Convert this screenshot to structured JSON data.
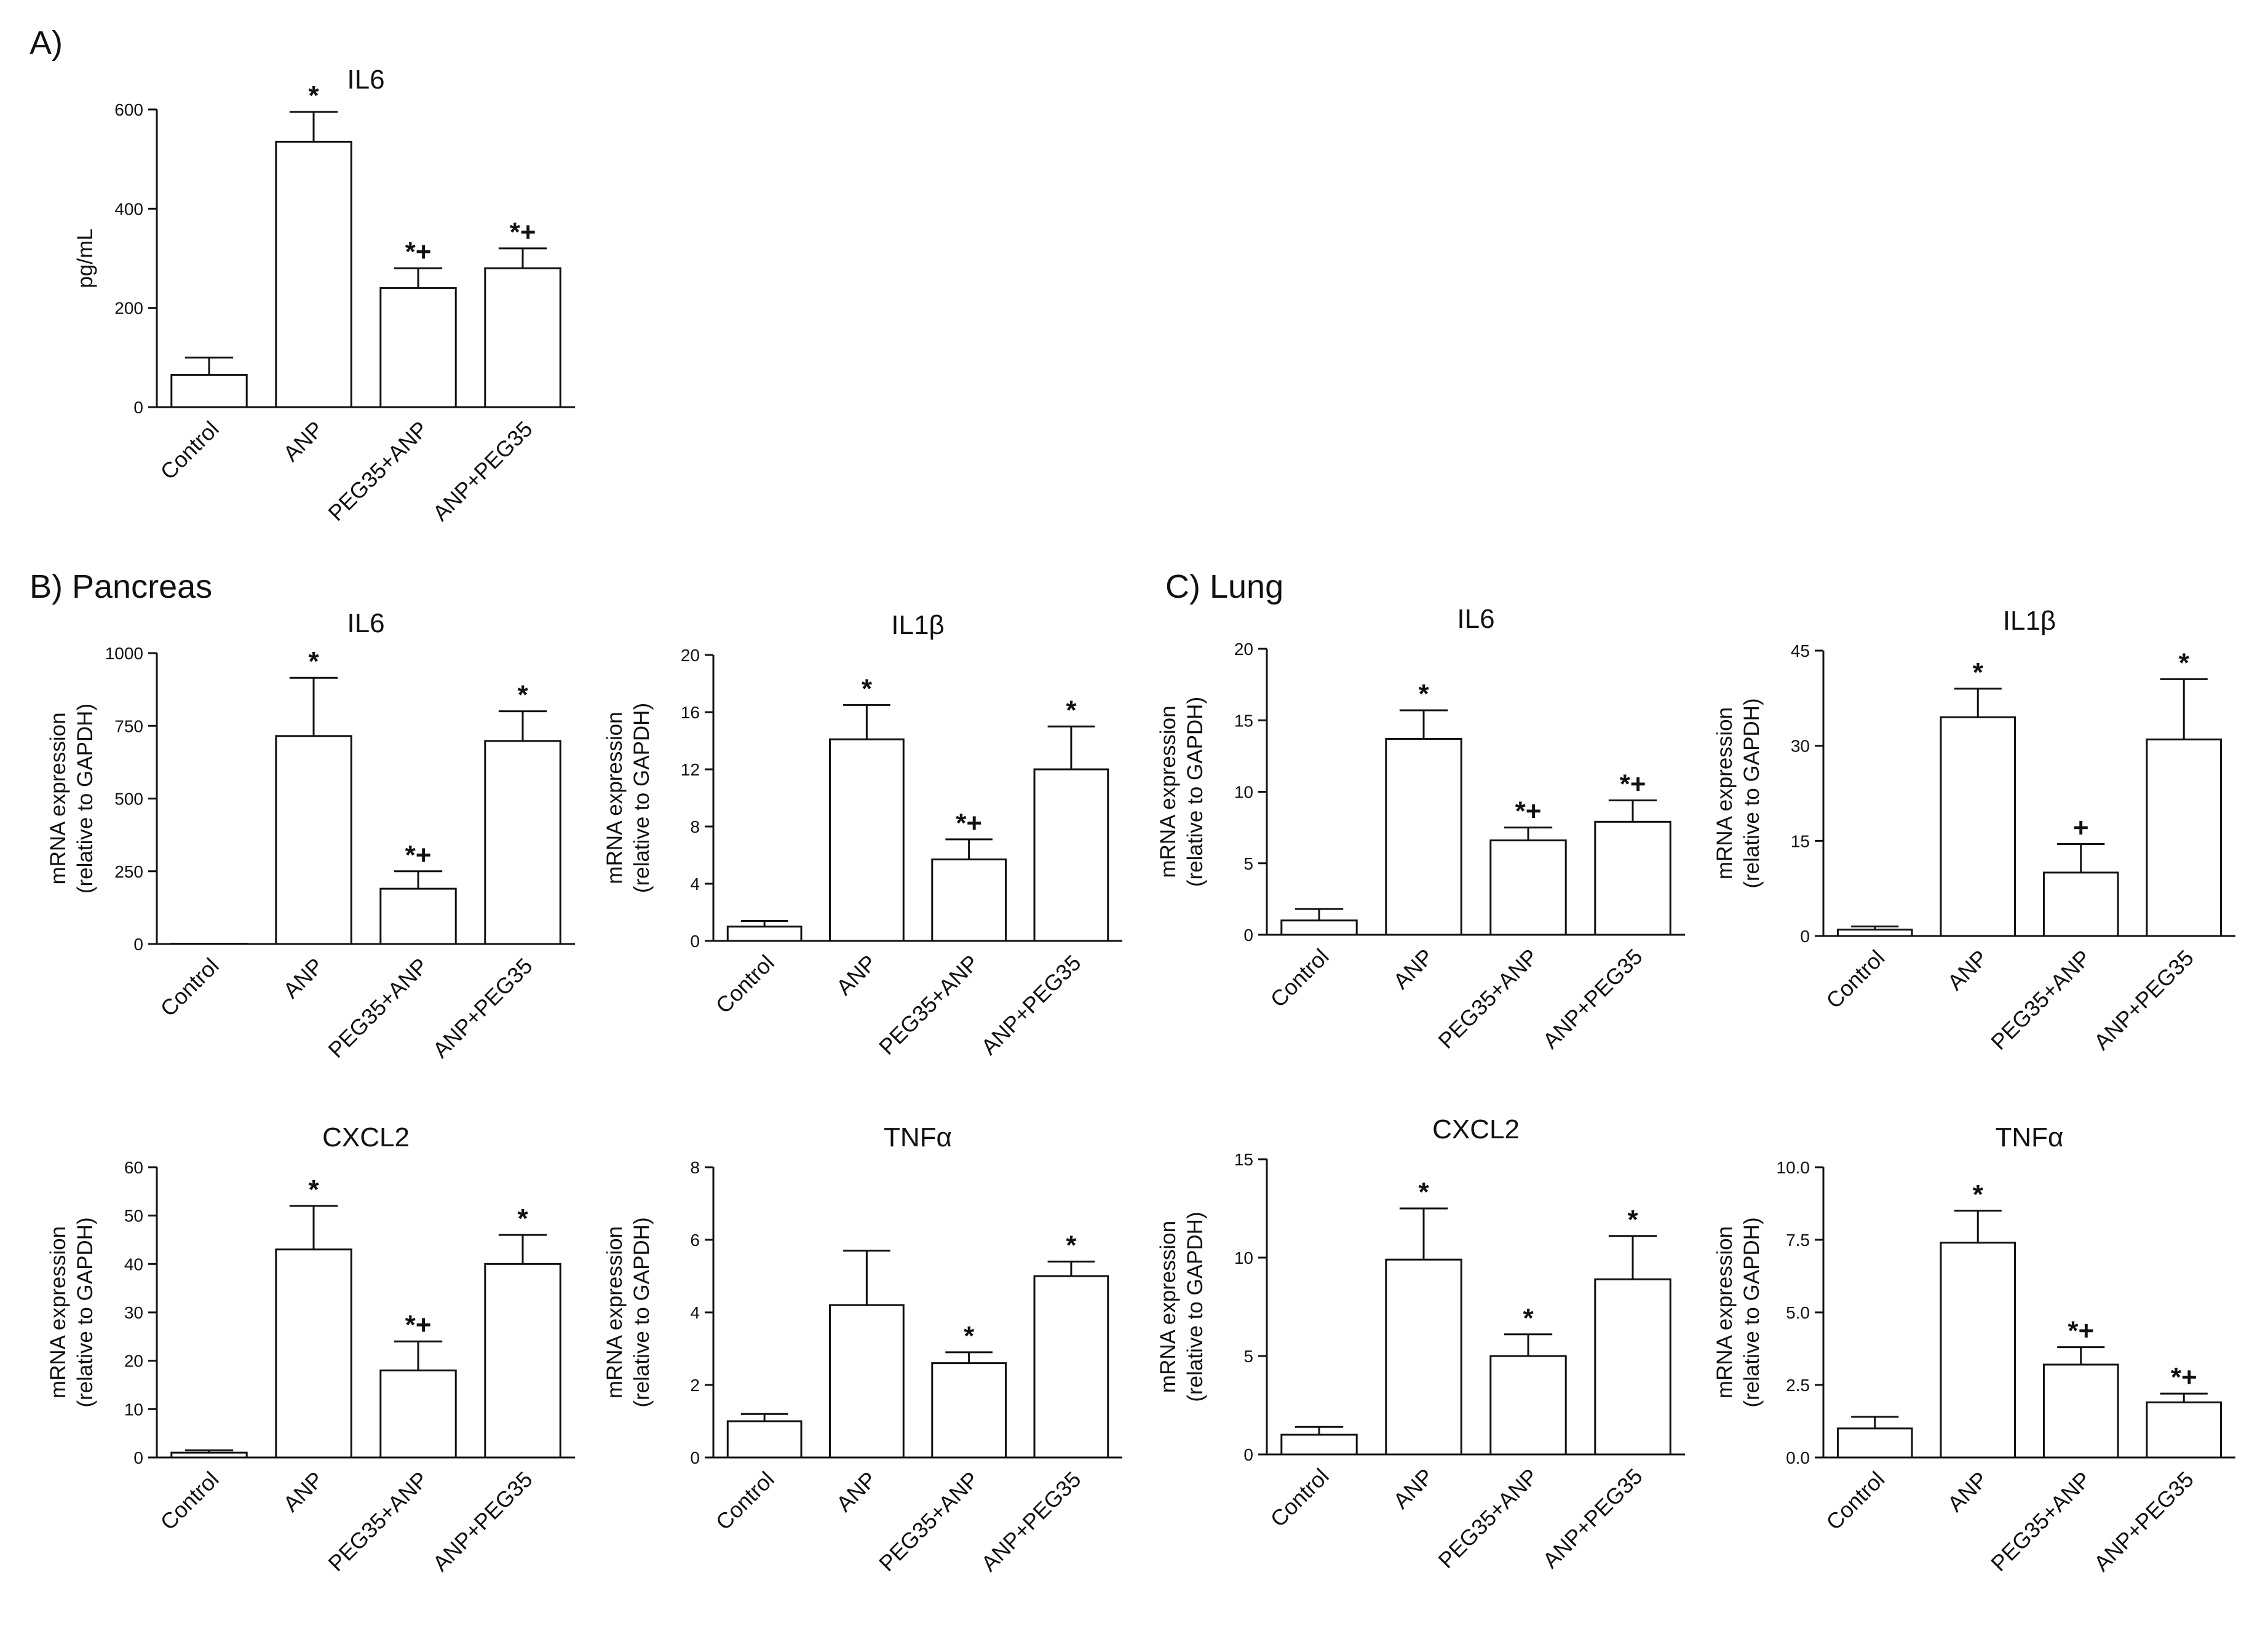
{
  "figure": {
    "panels": [
      {
        "id": "A",
        "label": "A)"
      },
      {
        "id": "B",
        "label": "B) Pancreas"
      },
      {
        "id": "C",
        "label": "C) Lung"
      }
    ]
  },
  "chart_data": [
    {
      "id": "A-IL6",
      "type": "bar",
      "title": "IL6",
      "ylabel": [
        "pg/mL"
      ],
      "xlabel": "",
      "categories": [
        "Control",
        "ANP",
        "PEG35+ANP",
        "ANP+PEG35"
      ],
      "values": [
        65,
        535,
        240,
        280
      ],
      "errors": [
        35,
        60,
        40,
        40
      ],
      "significance": [
        "",
        "*",
        "*+",
        "*+"
      ],
      "ylim": [
        0,
        600
      ],
      "yticks": [
        "0",
        "200",
        "400",
        "600"
      ],
      "grid": false,
      "bar_fill": "#ffffff"
    },
    {
      "id": "B-IL6",
      "type": "bar",
      "title": "IL6",
      "ylabel": [
        "mRNA expression",
        "(relative to GAPDH)"
      ],
      "xlabel": "",
      "categories": [
        "Control",
        "ANP",
        "PEG35+ANP",
        "ANP+PEG35"
      ],
      "values": [
        1,
        715,
        190,
        698
      ],
      "errors": [
        0,
        200,
        60,
        102
      ],
      "significance": [
        "",
        "*",
        "*+",
        "*"
      ],
      "ylim": [
        0,
        1000
      ],
      "yticks": [
        "0",
        "250",
        "500",
        "750",
        "1000"
      ],
      "grid": false,
      "bar_fill": "#ffffff"
    },
    {
      "id": "B-IL1b",
      "type": "bar",
      "title": "IL1β",
      "ylabel": [
        "mRNA expression",
        "(relative to GAPDH)"
      ],
      "xlabel": "",
      "categories": [
        "Control",
        "ANP",
        "PEG35+ANP",
        "ANP+PEG35"
      ],
      "values": [
        1,
        14.1,
        5.7,
        12.0
      ],
      "errors": [
        0.4,
        2.4,
        1.4,
        3.0
      ],
      "significance": [
        "",
        "*",
        "*+",
        "*"
      ],
      "ylim": [
        0,
        20
      ],
      "yticks": [
        "0",
        "4",
        "8",
        "12",
        "16",
        "20"
      ],
      "grid": false,
      "bar_fill": "#ffffff"
    },
    {
      "id": "B-CXCL2",
      "type": "bar",
      "title": "CXCL2",
      "ylabel": [
        "mRNA expression",
        "(relative to GAPDH)"
      ],
      "xlabel": "",
      "categories": [
        "Control",
        "ANP",
        "PEG35+ANP",
        "ANP+PEG35"
      ],
      "values": [
        1,
        43,
        18,
        40
      ],
      "errors": [
        0.5,
        9,
        6,
        6
      ],
      "significance": [
        "",
        "*",
        "*+",
        "*"
      ],
      "ylim": [
        0,
        60
      ],
      "yticks": [
        "0",
        "10",
        "20",
        "30",
        "40",
        "50",
        "60"
      ],
      "grid": false,
      "bar_fill": "#ffffff"
    },
    {
      "id": "B-TNFa",
      "type": "bar",
      "title": "TNFα",
      "ylabel": [
        "mRNA expression",
        "(relative to GAPDH)"
      ],
      "xlabel": "",
      "categories": [
        "Control",
        "ANP",
        "PEG35+ANP",
        "ANP+PEG35"
      ],
      "values": [
        1,
        4.2,
        2.6,
        5.0
      ],
      "errors": [
        0.2,
        1.5,
        0.3,
        0.4
      ],
      "significance": [
        "",
        "",
        "*",
        "*"
      ],
      "ylim": [
        0,
        8
      ],
      "yticks": [
        "0",
        "2",
        "4",
        "6",
        "8"
      ],
      "grid": false,
      "bar_fill": "#ffffff"
    },
    {
      "id": "C-IL6",
      "type": "bar",
      "title": "IL6",
      "ylabel": [
        "mRNA expression",
        "(relative to GAPDH)"
      ],
      "xlabel": "",
      "categories": [
        "Control",
        "ANP",
        "PEG35+ANP",
        "ANP+PEG35"
      ],
      "values": [
        1,
        13.7,
        6.6,
        7.9
      ],
      "errors": [
        0.8,
        2.0,
        0.9,
        1.5
      ],
      "significance": [
        "",
        "*",
        "*+",
        "*+"
      ],
      "ylim": [
        0,
        20
      ],
      "yticks": [
        "0",
        "5",
        "10",
        "15",
        "20"
      ],
      "grid": false,
      "bar_fill": "#ffffff"
    },
    {
      "id": "C-IL1b",
      "type": "bar",
      "title": "IL1β",
      "ylabel": [
        "mRNA expression",
        "(relative to GAPDH)"
      ],
      "xlabel": "",
      "categories": [
        "Control",
        "ANP",
        "PEG35+ANP",
        "ANP+PEG35"
      ],
      "values": [
        1,
        34.5,
        10,
        31
      ],
      "errors": [
        0.5,
        4.5,
        4.5,
        9.5
      ],
      "significance": [
        "",
        "*",
        "+",
        "*"
      ],
      "ylim": [
        0,
        45
      ],
      "yticks": [
        "0",
        "15",
        "30",
        "45"
      ],
      "grid": false,
      "bar_fill": "#ffffff"
    },
    {
      "id": "C-CXCL2",
      "type": "bar",
      "title": "CXCL2",
      "ylabel": [
        "mRNA expression",
        "(relative to GAPDH)"
      ],
      "xlabel": "",
      "categories": [
        "Control",
        "ANP",
        "PEG35+ANP",
        "ANP+PEG35"
      ],
      "values": [
        1,
        9.9,
        5.0,
        8.9
      ],
      "errors": [
        0.4,
        2.6,
        1.1,
        2.2
      ],
      "significance": [
        "",
        "*",
        "*",
        "*"
      ],
      "ylim": [
        0,
        15
      ],
      "yticks": [
        "0",
        "5",
        "10",
        "15"
      ],
      "grid": false,
      "bar_fill": "#ffffff"
    },
    {
      "id": "C-TNFa",
      "type": "bar",
      "title": "TNFα",
      "ylabel": [
        "mRNA expression",
        "(relative to GAPDH)"
      ],
      "xlabel": "",
      "categories": [
        "Control",
        "ANP",
        "PEG35+ANP",
        "ANP+PEG35"
      ],
      "values": [
        1,
        7.4,
        3.2,
        1.9
      ],
      "errors": [
        0.4,
        1.1,
        0.6,
        0.3
      ],
      "significance": [
        "",
        "*",
        "*+",
        "*+"
      ],
      "ylim": [
        0,
        10
      ],
      "yticks": [
        "0.0",
        "2.5",
        "5.0",
        "7.5",
        "10.0"
      ],
      "grid": false,
      "bar_fill": "#ffffff"
    }
  ]
}
